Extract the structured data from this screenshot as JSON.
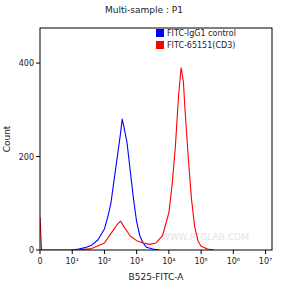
{
  "chart_data": {
    "type": "line",
    "title": "Multi-sample : P1",
    "x_label": "B525-FITC-A",
    "y_label": "Count",
    "xlim": [
      0,
      7.2
    ],
    "ylim": [
      0,
      475
    ],
    "xticks": [
      {
        "value": 0,
        "label": "0"
      },
      {
        "value": 1,
        "label": "10¹"
      },
      {
        "value": 2,
        "label": "10²"
      },
      {
        "value": 3,
        "label": "10³"
      },
      {
        "value": 4,
        "label": "10⁴"
      },
      {
        "value": 5,
        "label": "10⁵"
      },
      {
        "value": 6,
        "label": "10⁶"
      },
      {
        "value": 7,
        "label": "10⁷"
      }
    ],
    "yticks": [
      0,
      200,
      400
    ],
    "grid": false,
    "legend": "top-right",
    "annotations": [
      "WWW.PTGLAB.COM"
    ],
    "series": [
      {
        "name": "FITC-IgG1 control",
        "color": "#0000ff",
        "x": [
          1.0,
          1.2,
          1.4,
          1.6,
          1.8,
          2.0,
          2.1,
          2.2,
          2.3,
          2.4,
          2.5,
          2.55,
          2.6,
          2.7,
          2.8,
          2.9,
          3.0,
          3.1,
          3.2,
          3.3,
          3.5,
          3.7
        ],
        "values": [
          0,
          2,
          5,
          10,
          22,
          45,
          70,
          100,
          150,
          200,
          250,
          280,
          265,
          230,
          170,
          110,
          60,
          30,
          15,
          6,
          2,
          0
        ]
      },
      {
        "name": "FITC-65151(CD3)",
        "color": "#ff0000",
        "x": [
          0,
          0.05,
          1.2,
          1.6,
          2.0,
          2.2,
          2.4,
          2.5,
          2.6,
          2.7,
          2.8,
          3.0,
          3.2,
          3.4,
          3.6,
          3.8,
          4.0,
          4.1,
          4.2,
          4.3,
          4.38,
          4.45,
          4.5,
          4.6,
          4.7,
          4.8,
          4.9,
          5.0,
          5.2,
          5.4
        ],
        "values": [
          70,
          0,
          0,
          3,
          15,
          35,
          55,
          62,
          50,
          40,
          30,
          20,
          15,
          12,
          15,
          30,
          80,
          140,
          220,
          330,
          390,
          360,
          300,
          200,
          110,
          50,
          20,
          8,
          2,
          0
        ]
      }
    ]
  }
}
